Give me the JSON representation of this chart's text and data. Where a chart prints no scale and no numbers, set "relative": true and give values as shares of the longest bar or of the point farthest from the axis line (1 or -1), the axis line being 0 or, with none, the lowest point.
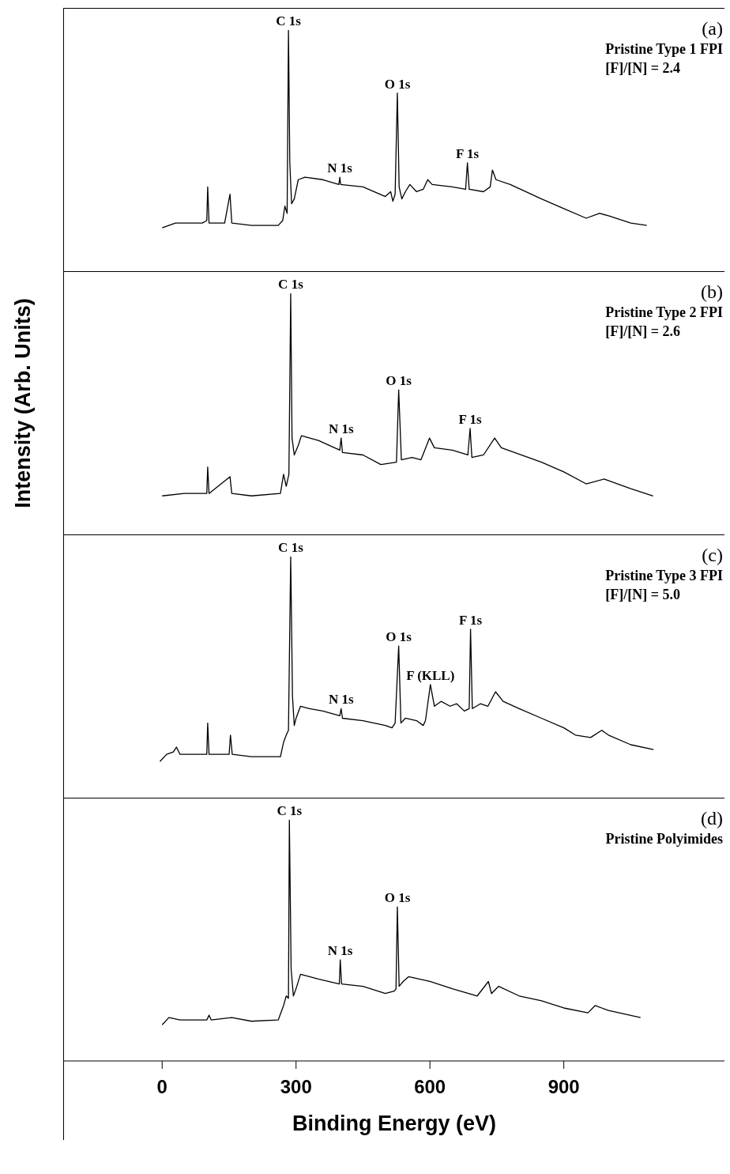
{
  "chart_data": [
    {
      "type": "line",
      "relative": true,
      "color": "#000000",
      "xlim": [
        -220,
        1260
      ],
      "xticks": [
        0,
        300,
        600,
        900
      ],
      "tick_labels": false,
      "x": [
        0,
        30,
        90,
        100,
        102,
        105,
        140,
        152,
        156,
        200,
        260,
        270,
        275,
        280,
        283,
        286,
        290,
        296,
        305,
        320,
        360,
        396,
        398,
        400,
        450,
        500,
        512,
        517,
        522,
        527,
        531,
        537,
        545,
        555,
        570,
        585,
        595,
        605,
        650,
        680,
        684,
        688,
        720,
        735,
        740,
        748,
        780,
        850,
        900,
        950,
        980,
        1000,
        1050,
        1086
      ],
      "values": [
        0.18,
        0.2,
        0.2,
        0.21,
        0.35,
        0.2,
        0.2,
        0.32,
        0.2,
        0.19,
        0.19,
        0.21,
        0.27,
        0.24,
        1.0,
        0.45,
        0.28,
        0.3,
        0.38,
        0.39,
        0.38,
        0.36,
        0.39,
        0.36,
        0.35,
        0.31,
        0.33,
        0.29,
        0.32,
        0.74,
        0.35,
        0.3,
        0.33,
        0.36,
        0.33,
        0.34,
        0.38,
        0.36,
        0.35,
        0.34,
        0.45,
        0.34,
        0.33,
        0.35,
        0.42,
        0.38,
        0.36,
        0.3,
        0.26,
        0.22,
        0.24,
        0.23,
        0.2,
        0.19
      ],
      "annotations": [
        "(a)",
        "Pristine Type 1 FPI",
        "[F]/[N] = 2.4",
        {
          "text": "C 1s",
          "x": 283,
          "y": 1.0
        },
        {
          "text": "N 1s",
          "x": 398,
          "y": 0.39
        },
        {
          "text": "O 1s",
          "x": 527,
          "y": 0.74
        },
        {
          "text": "F 1s",
          "x": 684,
          "y": 0.45
        }
      ]
    },
    {
      "type": "line",
      "relative": true,
      "color": "#000000",
      "ylabel": "Intensity (Arb. Units)",
      "xlim": [
        -220,
        1260
      ],
      "xticks": [
        0,
        300,
        600,
        900
      ],
      "tick_labels": false,
      "x": [
        0,
        50,
        100,
        102,
        105,
        152,
        156,
        200,
        265,
        272,
        278,
        284,
        288,
        291,
        296,
        305,
        312,
        350,
        398,
        401,
        404,
        450,
        490,
        525,
        530,
        536,
        560,
        580,
        599,
        610,
        650,
        685,
        690,
        694,
        720,
        745,
        760,
        850,
        900,
        950,
        990,
        1050,
        1100
      ],
      "values": [
        0.16,
        0.17,
        0.17,
        0.28,
        0.17,
        0.24,
        0.17,
        0.16,
        0.17,
        0.25,
        0.2,
        0.25,
        1.0,
        0.4,
        0.33,
        0.37,
        0.41,
        0.39,
        0.35,
        0.4,
        0.34,
        0.33,
        0.29,
        0.3,
        0.6,
        0.31,
        0.32,
        0.31,
        0.4,
        0.36,
        0.35,
        0.33,
        0.44,
        0.32,
        0.33,
        0.4,
        0.36,
        0.3,
        0.26,
        0.21,
        0.23,
        0.19,
        0.16
      ],
      "annotations": [
        "(b)",
        "Pristine Type 2 FPI",
        "[F]/[N] = 2.6",
        {
          "text": "C 1s",
          "x": 288,
          "y": 1.0
        },
        {
          "text": "N 1s",
          "x": 401,
          "y": 0.4
        },
        {
          "text": "O 1s",
          "x": 530,
          "y": 0.6
        },
        {
          "text": "F 1s",
          "x": 690,
          "y": 0.44
        }
      ]
    },
    {
      "type": "line",
      "relative": true,
      "color": "#000000",
      "xlim": [
        -220,
        1260
      ],
      "xticks": [
        0,
        300,
        600,
        900
      ],
      "tick_labels": false,
      "x": [
        -5,
        10,
        25,
        32,
        40,
        80,
        100,
        102,
        105,
        150,
        153,
        157,
        200,
        265,
        272,
        278,
        283,
        288,
        292,
        296,
        300,
        310,
        330,
        360,
        398,
        401,
        404,
        450,
        500,
        515,
        522,
        530,
        535,
        545,
        570,
        585,
        590,
        601,
        610,
        625,
        645,
        660,
        677,
        688,
        691,
        695,
        713,
        730,
        747,
        764,
        800,
        850,
        900,
        926,
        960,
        985,
        1000,
        1050,
        1101
      ],
      "values": [
        0.15,
        0.18,
        0.19,
        0.21,
        0.18,
        0.18,
        0.18,
        0.31,
        0.18,
        0.18,
        0.26,
        0.18,
        0.17,
        0.17,
        0.23,
        0.26,
        0.28,
        1.0,
        0.42,
        0.3,
        0.33,
        0.38,
        0.37,
        0.36,
        0.34,
        0.37,
        0.33,
        0.32,
        0.3,
        0.29,
        0.31,
        0.63,
        0.31,
        0.33,
        0.32,
        0.3,
        0.32,
        0.47,
        0.38,
        0.4,
        0.38,
        0.39,
        0.36,
        0.37,
        0.7,
        0.37,
        0.39,
        0.38,
        0.44,
        0.4,
        0.37,
        0.33,
        0.29,
        0.26,
        0.25,
        0.28,
        0.26,
        0.22,
        0.2
      ],
      "annotations": [
        "(c)",
        "Pristine Type 3 FPI",
        "[F]/[N] = 5.0",
        {
          "text": "C 1s",
          "x": 288,
          "y": 1.0
        },
        {
          "text": "N 1s",
          "x": 401,
          "y": 0.37
        },
        {
          "text": "O 1s",
          "x": 530,
          "y": 0.63
        },
        {
          "text": "F (KLL)",
          "x": 601,
          "y": 0.47
        },
        {
          "text": "F 1s",
          "x": 691,
          "y": 0.7
        }
      ]
    },
    {
      "type": "line",
      "relative": true,
      "color": "#000000",
      "xlabel": "Binding Energy (eV)",
      "xlim": [
        -220,
        1260
      ],
      "xticks": [
        0,
        300,
        600,
        900
      ],
      "x": [
        0,
        15,
        40,
        100,
        105,
        110,
        156,
        200,
        260,
        272,
        278,
        283,
        285,
        289,
        294,
        300,
        310,
        350,
        397,
        399,
        402,
        450,
        500,
        520,
        524,
        527,
        531,
        540,
        552,
        600,
        650,
        706,
        731,
        738,
        754,
        800,
        850,
        900,
        954,
        970,
        1000,
        1072
      ],
      "values": [
        0.15,
        0.18,
        0.17,
        0.17,
        0.19,
        0.17,
        0.18,
        0.165,
        0.17,
        0.23,
        0.27,
        0.26,
        1.0,
        0.38,
        0.27,
        0.3,
        0.36,
        0.34,
        0.32,
        0.42,
        0.32,
        0.31,
        0.28,
        0.29,
        0.3,
        0.64,
        0.31,
        0.33,
        0.35,
        0.33,
        0.3,
        0.27,
        0.33,
        0.28,
        0.31,
        0.27,
        0.25,
        0.22,
        0.2,
        0.23,
        0.21,
        0.18
      ],
      "annotations": [
        "(d)",
        "Pristine Polyimides",
        {
          "text": "C 1s",
          "x": 285,
          "y": 1.0
        },
        {
          "text": "N 1s",
          "x": 399,
          "y": 0.42
        },
        {
          "text": "O 1s",
          "x": 527,
          "y": 0.64
        }
      ]
    }
  ]
}
